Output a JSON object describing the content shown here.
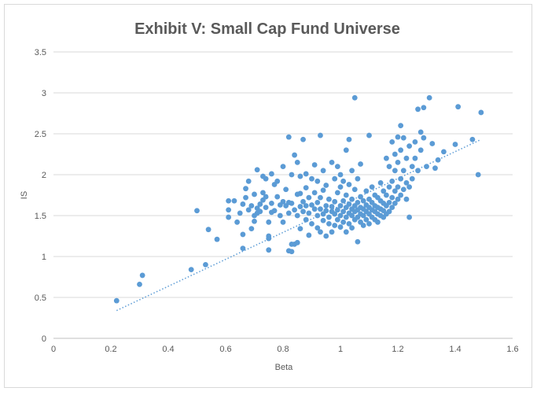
{
  "chart_data": {
    "type": "scatter",
    "title": "Exhibit V: Small Cap Fund Universe",
    "xlabel": "Beta",
    "ylabel": "IS",
    "xlim": [
      0,
      1.6
    ],
    "ylim": [
      0,
      3.5
    ],
    "xticks": [
      "0",
      "0.2",
      "0.4",
      "0.6",
      "0.8",
      "1",
      "1.2",
      "1.4",
      "1.6"
    ],
    "yticks": [
      "0",
      "0.5",
      "1",
      "1.5",
      "2",
      "2.5",
      "3",
      "3.5"
    ],
    "grid": "horizontal",
    "colors": {
      "points": "#5b9bd5",
      "trendline": "#5b9bd5"
    },
    "trendline": {
      "style": "dotted",
      "x": [
        0.22,
        1.49
      ],
      "y": [
        0.34,
        2.43
      ]
    },
    "series": [
      {
        "points": [
          [
            0.22,
            0.46
          ],
          [
            0.3,
            0.66
          ],
          [
            0.31,
            0.77
          ],
          [
            0.48,
            0.84
          ],
          [
            0.5,
            1.56
          ],
          [
            0.53,
            0.9
          ],
          [
            0.54,
            1.33
          ],
          [
            0.57,
            1.21
          ],
          [
            0.61,
            1.48
          ],
          [
            0.61,
            1.57
          ],
          [
            0.61,
            1.68
          ],
          [
            0.63,
            1.68
          ],
          [
            0.64,
            1.42
          ],
          [
            0.65,
            1.53
          ],
          [
            0.66,
            1.1
          ],
          [
            0.66,
            1.27
          ],
          [
            0.66,
            1.64
          ],
          [
            0.67,
            1.72
          ],
          [
            0.67,
            1.83
          ],
          [
            0.68,
            1.92
          ],
          [
            0.68,
            1.57
          ],
          [
            0.69,
            1.34
          ],
          [
            0.69,
            1.62
          ],
          [
            0.7,
            1.43
          ],
          [
            0.7,
            1.5
          ],
          [
            0.7,
            1.76
          ],
          [
            0.71,
            1.53
          ],
          [
            0.71,
            1.59
          ],
          [
            0.71,
            2.06
          ],
          [
            0.72,
            1.64
          ],
          [
            0.72,
            1.55
          ],
          [
            0.73,
            1.69
          ],
          [
            0.73,
            1.78
          ],
          [
            0.73,
            1.98
          ],
          [
            0.74,
            1.6
          ],
          [
            0.74,
            1.73
          ],
          [
            0.74,
            1.95
          ],
          [
            0.75,
            1.08
          ],
          [
            0.75,
            1.25
          ],
          [
            0.75,
            1.42
          ],
          [
            0.75,
            1.22
          ],
          [
            0.76,
            1.54
          ],
          [
            0.76,
            1.65
          ],
          [
            0.76,
            2.01
          ],
          [
            0.77,
            1.88
          ],
          [
            0.77,
            1.56
          ],
          [
            0.78,
            1.73
          ],
          [
            0.78,
            1.92
          ],
          [
            0.79,
            1.63
          ],
          [
            0.79,
            1.5
          ],
          [
            0.8,
            1.67
          ],
          [
            0.8,
            2.1
          ],
          [
            0.8,
            1.42
          ],
          [
            0.81,
            1.62
          ],
          [
            0.81,
            1.82
          ],
          [
            0.82,
            1.53
          ],
          [
            0.82,
            1.66
          ],
          [
            0.82,
            1.07
          ],
          [
            0.82,
            2.46
          ],
          [
            0.83,
            1.06
          ],
          [
            0.83,
            1.15
          ],
          [
            0.83,
            1.65
          ],
          [
            0.83,
            2.0
          ],
          [
            0.84,
            1.15
          ],
          [
            0.84,
            1.57
          ],
          [
            0.84,
            2.24
          ],
          [
            0.85,
            1.17
          ],
          [
            0.85,
            1.5
          ],
          [
            0.85,
            1.76
          ],
          [
            0.85,
            2.15
          ],
          [
            0.86,
            1.34
          ],
          [
            0.86,
            1.61
          ],
          [
            0.86,
            1.77
          ],
          [
            0.86,
            1.98
          ],
          [
            0.87,
            1.55
          ],
          [
            0.87,
            1.67
          ],
          [
            0.87,
            2.43
          ],
          [
            0.88,
            1.45
          ],
          [
            0.88,
            1.62
          ],
          [
            0.88,
            1.84
          ],
          [
            0.88,
            2.01
          ],
          [
            0.89,
            1.26
          ],
          [
            0.89,
            1.53
          ],
          [
            0.89,
            1.72
          ],
          [
            0.9,
            1.63
          ],
          [
            0.9,
            1.95
          ],
          [
            0.9,
            1.4
          ],
          [
            0.91,
            1.58
          ],
          [
            0.91,
            1.78
          ],
          [
            0.91,
            2.12
          ],
          [
            0.92,
            1.35
          ],
          [
            0.92,
            1.5
          ],
          [
            0.92,
            1.66
          ],
          [
            0.92,
            1.92
          ],
          [
            0.93,
            1.3
          ],
          [
            0.93,
            1.58
          ],
          [
            0.93,
            1.72
          ],
          [
            0.93,
            2.48
          ],
          [
            0.94,
            1.44
          ],
          [
            0.94,
            1.52
          ],
          [
            0.94,
            1.81
          ],
          [
            0.94,
            2.05
          ],
          [
            0.95,
            1.25
          ],
          [
            0.95,
            1.56
          ],
          [
            0.95,
            1.62
          ],
          [
            0.95,
            1.87
          ],
          [
            0.96,
            1.4
          ],
          [
            0.96,
            1.48
          ],
          [
            0.96,
            1.7
          ],
          [
            0.97,
            1.3
          ],
          [
            0.97,
            1.55
          ],
          [
            0.97,
            1.61
          ],
          [
            0.97,
            2.15
          ],
          [
            0.98,
            1.38
          ],
          [
            0.98,
            1.52
          ],
          [
            0.98,
            1.67
          ],
          [
            0.98,
            1.95
          ],
          [
            0.99,
            1.45
          ],
          [
            0.99,
            1.57
          ],
          [
            0.99,
            1.78
          ],
          [
            0.99,
            2.1
          ],
          [
            1.0,
            1.36
          ],
          [
            1.0,
            1.5
          ],
          [
            1.0,
            1.62
          ],
          [
            1.0,
            1.85
          ],
          [
            1.0,
            2.0
          ],
          [
            1.01,
            1.42
          ],
          [
            1.01,
            1.55
          ],
          [
            1.01,
            1.68
          ],
          [
            1.01,
            1.92
          ],
          [
            1.02,
            1.3
          ],
          [
            1.02,
            1.48
          ],
          [
            1.02,
            1.6
          ],
          [
            1.02,
            1.75
          ],
          [
            1.02,
            2.3
          ],
          [
            1.03,
            1.4
          ],
          [
            1.03,
            1.53
          ],
          [
            1.03,
            1.64
          ],
          [
            1.03,
            1.88
          ],
          [
            1.03,
            2.43
          ],
          [
            1.04,
            1.35
          ],
          [
            1.04,
            1.5
          ],
          [
            1.04,
            1.58
          ],
          [
            1.04,
            1.7
          ],
          [
            1.04,
            2.05
          ],
          [
            1.05,
            1.45
          ],
          [
            1.05,
            1.55
          ],
          [
            1.05,
            1.62
          ],
          [
            1.05,
            1.82
          ],
          [
            1.05,
            2.94
          ],
          [
            1.06,
            1.18
          ],
          [
            1.06,
            1.48
          ],
          [
            1.06,
            1.57
          ],
          [
            1.06,
            1.66
          ],
          [
            1.06,
            1.95
          ],
          [
            1.07,
            1.42
          ],
          [
            1.07,
            1.52
          ],
          [
            1.07,
            1.6
          ],
          [
            1.07,
            1.73
          ],
          [
            1.07,
            2.13
          ],
          [
            1.08,
            1.38
          ],
          [
            1.08,
            1.5
          ],
          [
            1.08,
            1.58
          ],
          [
            1.08,
            1.68
          ],
          [
            1.09,
            1.45
          ],
          [
            1.09,
            1.55
          ],
          [
            1.09,
            1.63
          ],
          [
            1.09,
            1.8
          ],
          [
            1.1,
            1.4
          ],
          [
            1.1,
            1.52
          ],
          [
            1.1,
            1.6
          ],
          [
            1.1,
            1.7
          ],
          [
            1.1,
            2.48
          ],
          [
            1.11,
            1.48
          ],
          [
            1.11,
            1.57
          ],
          [
            1.11,
            1.66
          ],
          [
            1.11,
            1.85
          ],
          [
            1.12,
            1.45
          ],
          [
            1.12,
            1.55
          ],
          [
            1.12,
            1.62
          ],
          [
            1.12,
            1.75
          ],
          [
            1.13,
            1.42
          ],
          [
            1.13,
            1.52
          ],
          [
            1.13,
            1.6
          ],
          [
            1.13,
            1.72
          ],
          [
            1.14,
            1.5
          ],
          [
            1.14,
            1.58
          ],
          [
            1.14,
            1.68
          ],
          [
            1.14,
            1.9
          ],
          [
            1.15,
            1.48
          ],
          [
            1.15,
            1.56
          ],
          [
            1.15,
            1.65
          ],
          [
            1.15,
            1.8
          ],
          [
            1.16,
            1.52
          ],
          [
            1.16,
            1.62
          ],
          [
            1.16,
            1.75
          ],
          [
            1.16,
            2.2
          ],
          [
            1.17,
            1.55
          ],
          [
            1.17,
            1.66
          ],
          [
            1.17,
            1.85
          ],
          [
            1.17,
            2.1
          ],
          [
            1.18,
            1.6
          ],
          [
            1.18,
            1.72
          ],
          [
            1.18,
            1.92
          ],
          [
            1.18,
            2.4
          ],
          [
            1.19,
            1.65
          ],
          [
            1.19,
            1.8
          ],
          [
            1.19,
            2.05
          ],
          [
            1.19,
            2.25
          ],
          [
            1.2,
            1.7
          ],
          [
            1.2,
            1.85
          ],
          [
            1.2,
            2.15
          ],
          [
            1.2,
            2.46
          ],
          [
            1.21,
            1.75
          ],
          [
            1.21,
            1.95
          ],
          [
            1.21,
            2.3
          ],
          [
            1.21,
            2.6
          ],
          [
            1.22,
            1.82
          ],
          [
            1.22,
            2.05
          ],
          [
            1.22,
            2.45
          ],
          [
            1.23,
            1.7
          ],
          [
            1.23,
            1.9
          ],
          [
            1.23,
            2.2
          ],
          [
            1.24,
            1.48
          ],
          [
            1.24,
            1.85
          ],
          [
            1.24,
            2.35
          ],
          [
            1.25,
            1.95
          ],
          [
            1.25,
            2.1
          ],
          [
            1.26,
            2.2
          ],
          [
            1.26,
            2.4
          ],
          [
            1.27,
            2.05
          ],
          [
            1.27,
            2.8
          ],
          [
            1.28,
            2.3
          ],
          [
            1.28,
            2.52
          ],
          [
            1.29,
            2.45
          ],
          [
            1.29,
            2.82
          ],
          [
            1.3,
            2.1
          ],
          [
            1.31,
            2.94
          ],
          [
            1.32,
            2.38
          ],
          [
            1.33,
            2.08
          ],
          [
            1.34,
            2.18
          ],
          [
            1.36,
            2.28
          ],
          [
            1.4,
            2.37
          ],
          [
            1.41,
            2.83
          ],
          [
            1.46,
            2.43
          ],
          [
            1.48,
            2.0
          ],
          [
            1.49,
            2.76
          ]
        ]
      }
    ]
  }
}
